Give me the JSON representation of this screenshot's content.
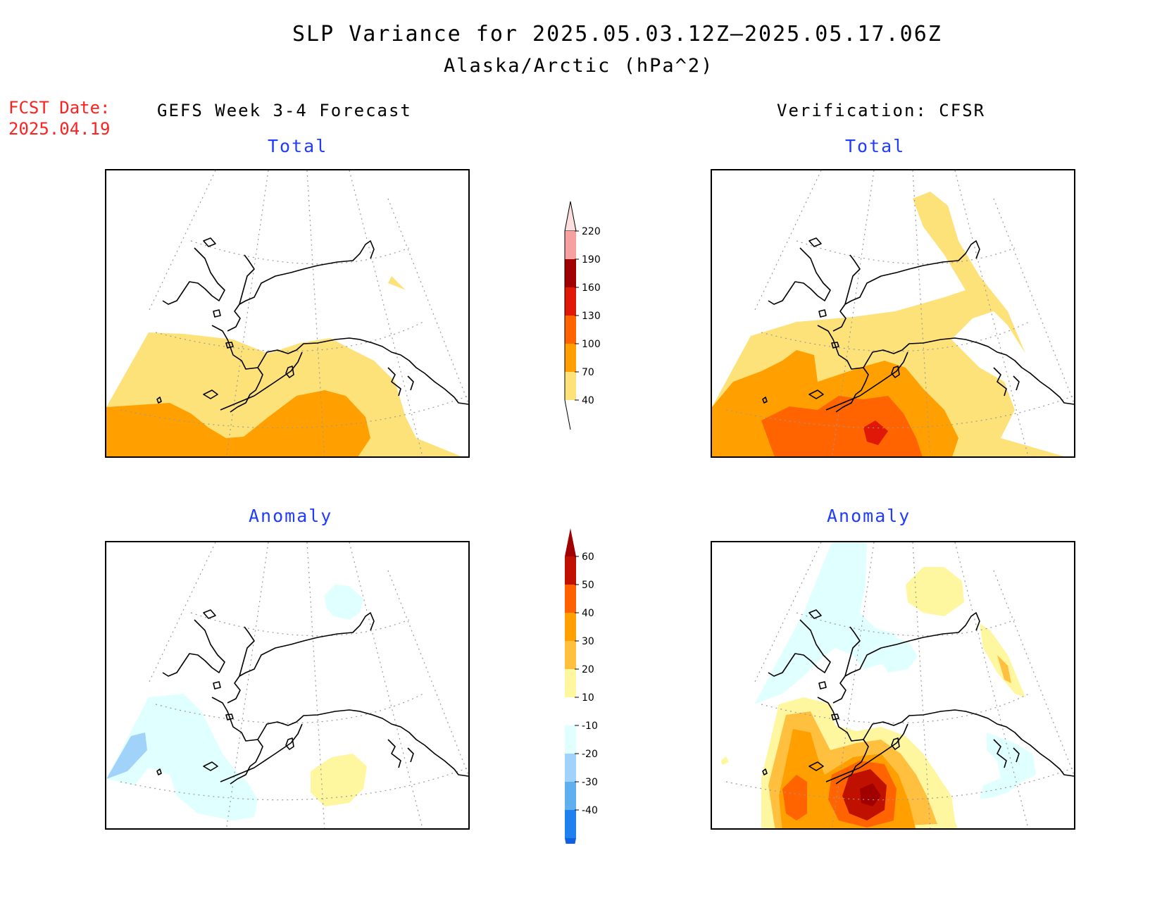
{
  "title": "SLP Variance for 2025.05.03.12Z—2025.05.17.06Z",
  "subtitle": "Alaska/Arctic (hPa^2)",
  "fcst_date_label": "FCST Date:",
  "fcst_date_value": "2025.04.19",
  "left_header": "GEFS Week 3-4 Forecast",
  "right_header": "Verification: CFSR",
  "panels": {
    "top_left": {
      "title": "Total"
    },
    "top_right": {
      "title": "Total"
    },
    "bottom_left": {
      "title": "Anomaly"
    },
    "bottom_right": {
      "title": "Anomaly"
    }
  },
  "colorbar_total": {
    "levels": [
      "220",
      "190",
      "160",
      "130",
      "100",
      "70",
      "40"
    ],
    "colors": [
      "#f6a0a0",
      "#a00000",
      "#e01808",
      "#ff6400",
      "#ffa000",
      "#fde27a"
    ],
    "top_color": "#fcdede"
  },
  "colorbar_anomaly": {
    "levels": [
      "60",
      "50",
      "40",
      "30",
      "20",
      "10",
      "-10",
      "-20",
      "-30",
      "-40"
    ],
    "colors": [
      "#c01000",
      "#ff6000",
      "#ffa000",
      "#ffc040",
      "#fff6a0",
      "#ffffff",
      "#e0ffff",
      "#a0d2fa",
      "#60b0f0",
      "#2080f0"
    ],
    "top_color": "#a00000",
    "bottom_color": "#1060e0"
  },
  "colors": {
    "yellow": "#fde27a",
    "orange": "#ffa000",
    "dark_orange": "#ff6400",
    "red": "#e01808",
    "light_cyan": "#e0ffff",
    "light_blue": "#a0d2fa",
    "pale_yellow": "#fff6a0",
    "light_orange": "#ffc040",
    "dark_red": "#a00000",
    "title_blue": "#1f3cff",
    "fcst_red": "#ff2020"
  }
}
